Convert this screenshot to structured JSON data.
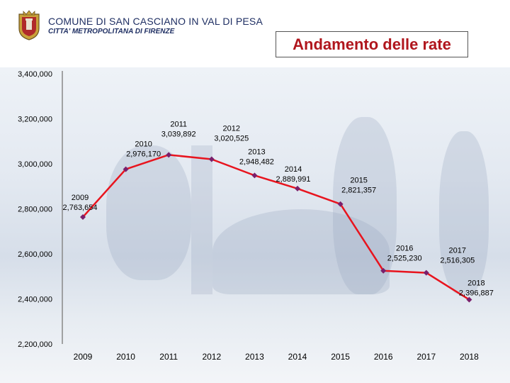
{
  "header": {
    "org_name": "COMUNE DI SAN CASCIANO IN VAL DI PESA",
    "org_subtitle": "CITTA' METROPOLITANA DI FIRENZE"
  },
  "chart_data": {
    "type": "line",
    "title": "Andamento delle rate",
    "categories": [
      "2009",
      "2010",
      "2011",
      "2012",
      "2013",
      "2014",
      "2015",
      "2016",
      "2017",
      "2018"
    ],
    "values": [
      2763654,
      2976170,
      3039892,
      3020525,
      2948482,
      2889991,
      2821357,
      2525230,
      2516305,
      2396887
    ],
    "value_labels": [
      "2,763,654",
      "2,976,170",
      "3,039,892",
      "3,020,525",
      "2,948,482",
      "2,889,991",
      "2,821,357",
      "2,525,230",
      "2,516,305",
      "2,396,887"
    ],
    "y_ticks": [
      2200000,
      2400000,
      2600000,
      2800000,
      3000000,
      3200000,
      3400000
    ],
    "y_tick_labels": [
      "2,200,000",
      "2,400,000",
      "2,600,000",
      "2,800,000",
      "3,000,000",
      "3,200,000",
      "3,400,000"
    ],
    "ylim": [
      2200000,
      3400000
    ],
    "xlabel": "",
    "ylabel": "",
    "grid": false,
    "colors": {
      "line": "#e8141e",
      "marker": "#7a1f6b",
      "axis": "#888888"
    }
  }
}
